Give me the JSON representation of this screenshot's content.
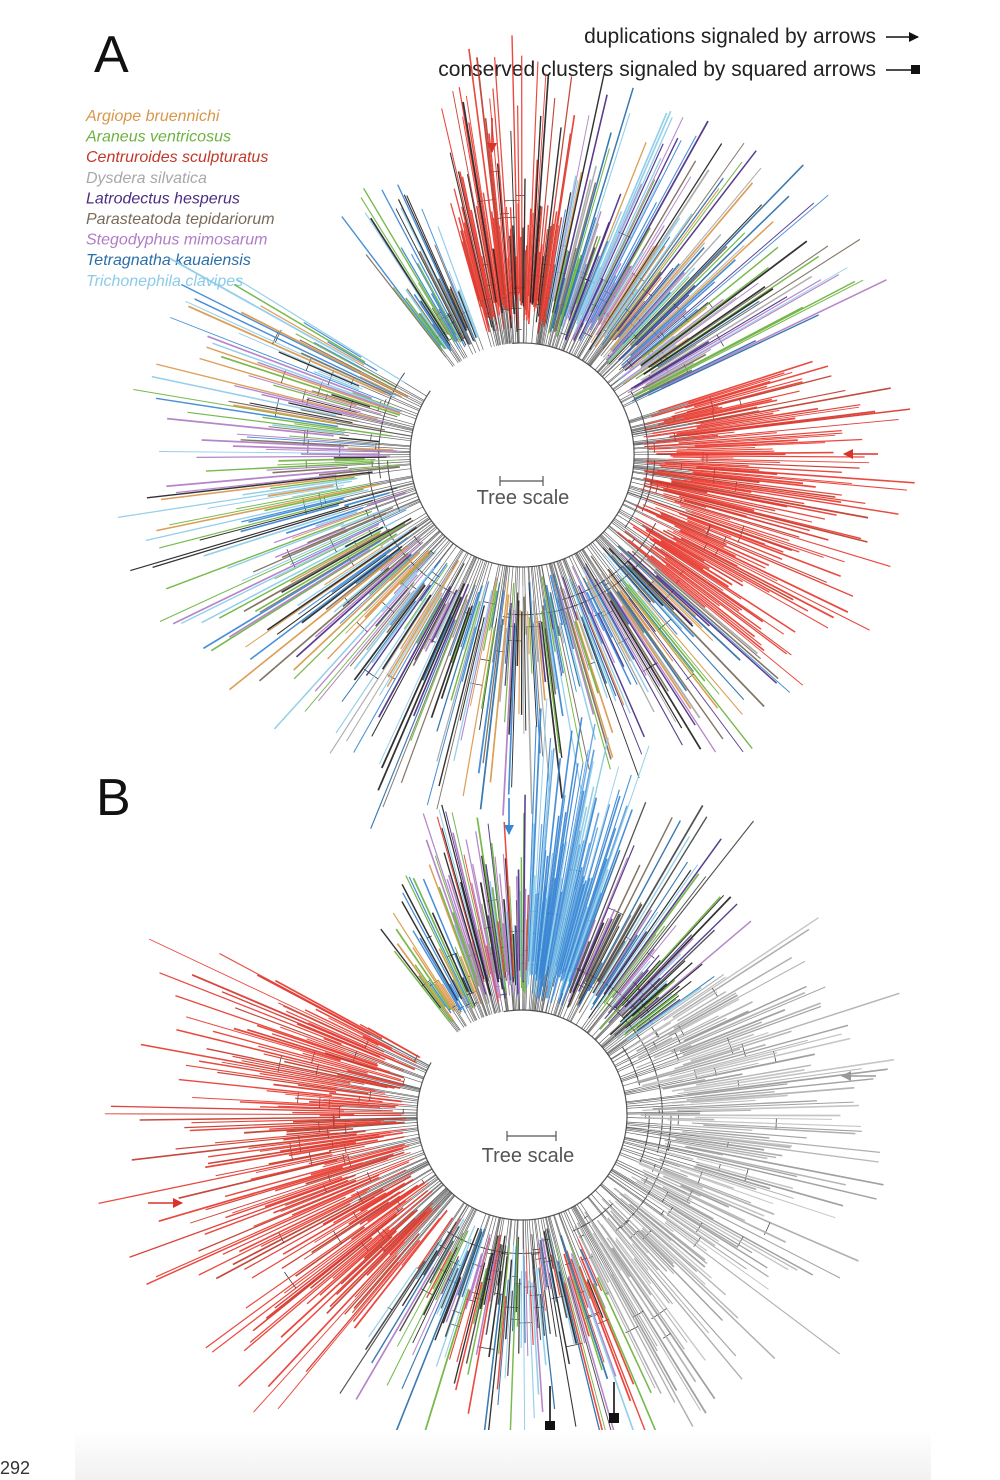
{
  "page_number": "292",
  "notes": {
    "duplications": "duplications signaled by arrows",
    "conserved": "conserved clusters signaled by squared arrows"
  },
  "legend": [
    {
      "label": "Argiope bruennichi",
      "color": "#d9974a"
    },
    {
      "label": "Araneus ventricosus",
      "color": "#6db33f"
    },
    {
      "label": "Centruroides sculpturatus",
      "color": "#c0392b"
    },
    {
      "label": "Dysdera silvatica",
      "color": "#a8a8a8"
    },
    {
      "label": "Latrodectus hesperus",
      "color": "#4b2e83"
    },
    {
      "label": "Parasteatoda tepidariorum",
      "color": "#7a6a5a"
    },
    {
      "label": "Stegodyphus mimosarum",
      "color": "#b07cc6"
    },
    {
      "label": "Tetragnatha kauaiensis",
      "color": "#2a6fa8"
    },
    {
      "label": "Trichonephila clavipes",
      "color": "#8ccbe8"
    }
  ],
  "panels": [
    {
      "letter": "A",
      "scale_label": "Tree scale",
      "highlight_color": "#e8392f",
      "accent_color": "#e8392f"
    },
    {
      "letter": "B",
      "scale_label": "Tree scale",
      "highlight_color": "#e8392f",
      "accent_color": "#4a90d9",
      "grey_color": "#b0b0b0"
    }
  ]
}
